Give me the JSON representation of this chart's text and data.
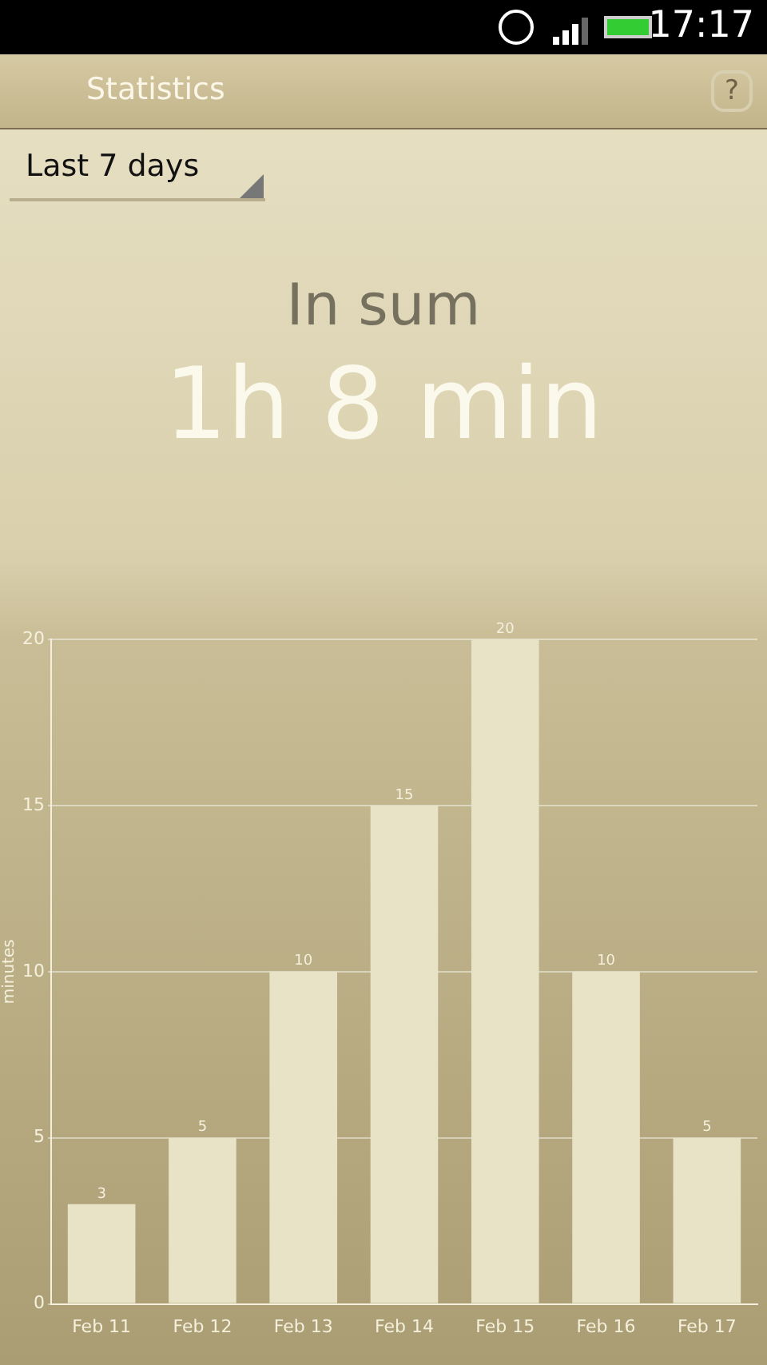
{
  "chart_data": {
    "type": "bar",
    "title": "In sum",
    "subtitle": "1h 8 min",
    "ylabel": "minutes",
    "annotations": [
      "17:17",
      "Statistics",
      "?",
      "Last 7 days"
    ],
    "categories": [
      "Feb 11",
      "Feb 12",
      "Feb 13",
      "Feb 14",
      "Feb 15",
      "Feb 16",
      "Feb 17"
    ],
    "values": [
      3,
      5,
      10,
      15,
      20,
      10,
      5
    ],
    "color": "#e8e3c6",
    "ylim": [
      0,
      20
    ],
    "yticks": [
      0,
      5,
      10,
      15,
      20
    ],
    "grid": "y",
    "data_labels": true,
    "legend": false
  }
}
